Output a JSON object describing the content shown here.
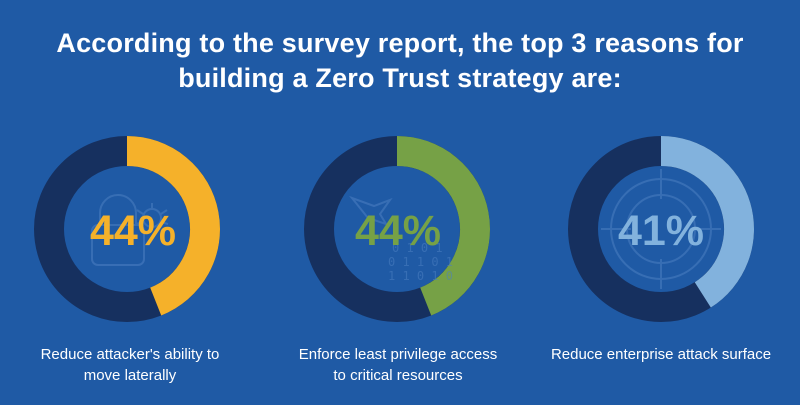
{
  "title": {
    "line1": "According to the survey report, the top 3 reasons for",
    "line2": "building a Zero Trust strategy are:"
  },
  "colors": {
    "background": "#1f5aa5",
    "track": "#16305f",
    "icon": "#5a8fd0"
  },
  "chart_data": {
    "type": "pie",
    "items": [
      {
        "value": 44,
        "value_label": "44%",
        "label_lines": [
          "Reduce attacker's ability to",
          "move laterally"
        ],
        "color": "#f5b12a",
        "icon": "lock-bug-icon"
      },
      {
        "value": 44,
        "value_label": "44%",
        "label_lines": [
          "Enforce least privilege access",
          "to critical resources"
        ],
        "color": "#76a146",
        "icon": "binary-bird-icon",
        "icon_text": [
          "0 1 0 1",
          "0 1 1 0 1",
          "1 1 0 1 0"
        ]
      },
      {
        "value": 41,
        "value_label": "41%",
        "label_lines": [
          "Reduce enterprise attack surface"
        ],
        "color": "#82b2dd",
        "icon": "crosshair-target-icon"
      }
    ]
  }
}
